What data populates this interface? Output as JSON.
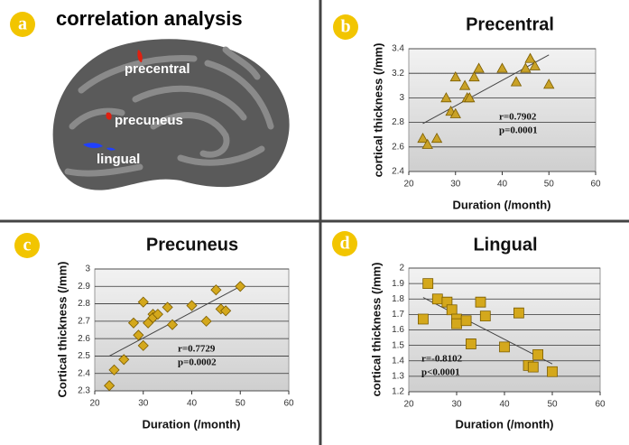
{
  "panel_a": {
    "letter": "a",
    "title": "correlation analysis",
    "labels": [
      "precentral",
      "precuneus",
      "lingual"
    ]
  },
  "chart_data": [
    {
      "type": "scatter",
      "letter": "b",
      "title": "Precentral",
      "xlabel": "Duration (/month)",
      "ylabel": "cortical thickness (/mm)",
      "marker": "triangle",
      "color": "#c9a227",
      "grid": true,
      "x": [
        23,
        24,
        26,
        28,
        29,
        30,
        30,
        32,
        32.5,
        33,
        34,
        35,
        40,
        43,
        45,
        46,
        47,
        50
      ],
      "y": [
        2.67,
        2.62,
        2.67,
        3.0,
        2.89,
        2.87,
        3.17,
        3.1,
        3.0,
        3.0,
        3.17,
        3.24,
        3.24,
        3.13,
        3.24,
        3.32,
        3.26,
        3.11
      ],
      "trendline": {
        "x": [
          23,
          50
        ],
        "y": [
          2.79,
          3.35
        ]
      },
      "annotations": [
        "r=0.7902",
        "p=0.0001"
      ],
      "xlim": [
        20,
        60
      ],
      "xticks": [
        20,
        30,
        40,
        50,
        60
      ],
      "ylim": [
        2.4,
        3.4
      ],
      "yticks": [
        2.4,
        2.6,
        2.8,
        3,
        3.2,
        3.4
      ]
    },
    {
      "type": "scatter",
      "letter": "c",
      "title": "Precuneus",
      "xlabel": "Duration (/month)",
      "ylabel": "Cortical thickness (/mm)",
      "marker": "diamond",
      "color": "#d4a81c",
      "grid": true,
      "x": [
        23,
        24,
        26,
        28,
        29,
        30,
        30,
        31,
        32,
        32,
        33,
        35,
        36,
        40,
        43,
        45,
        46,
        47,
        50
      ],
      "y": [
        2.33,
        2.42,
        2.48,
        2.69,
        2.62,
        2.56,
        2.81,
        2.69,
        2.74,
        2.72,
        2.74,
        2.78,
        2.68,
        2.79,
        2.7,
        2.88,
        2.77,
        2.76,
        2.9
      ],
      "trendline": {
        "x": [
          23,
          50
        ],
        "y": [
          2.5,
          2.9
        ]
      },
      "annotations": [
        "r=0.7729",
        "p=0.0002"
      ],
      "xlim": [
        20,
        60
      ],
      "xticks": [
        20,
        30,
        40,
        50,
        60
      ],
      "ylim": [
        2.3,
        3
      ],
      "yticks": [
        2.3,
        2.4,
        2.5,
        2.6,
        2.7,
        2.8,
        2.9,
        3
      ]
    },
    {
      "type": "scatter",
      "letter": "d",
      "title": "Lingual",
      "xlabel": "Duration (/month)",
      "ylabel": "cortical thickness (/mm)",
      "marker": "square",
      "color": "#d4a81c",
      "grid": true,
      "x": [
        23,
        24,
        26,
        28,
        29,
        30,
        30,
        32,
        33,
        35,
        36,
        40,
        43,
        45,
        46,
        47,
        50
      ],
      "y": [
        1.67,
        1.9,
        1.8,
        1.78,
        1.73,
        1.67,
        1.64,
        1.66,
        1.51,
        1.78,
        1.69,
        1.49,
        1.71,
        1.37,
        1.36,
        1.44,
        1.33
      ],
      "trendline": {
        "x": [
          23,
          50
        ],
        "y": [
          1.81,
          1.38
        ]
      },
      "annotations": [
        "r=-0.8102",
        "p<0.0001"
      ],
      "xlim": [
        20,
        60
      ],
      "xticks": [
        20,
        30,
        40,
        50,
        60
      ],
      "ylim": [
        1.2,
        2
      ],
      "yticks": [
        1.2,
        1.3,
        1.4,
        1.5,
        1.6,
        1.7,
        1.8,
        1.9,
        2
      ]
    }
  ]
}
